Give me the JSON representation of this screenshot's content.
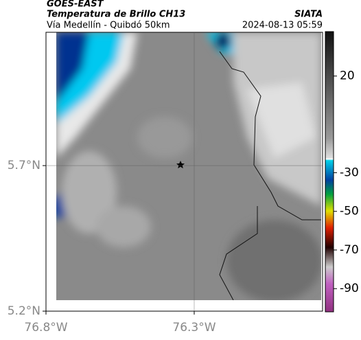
{
  "header": {
    "source": "GOES-EAST",
    "title": "Temperatura de Brillo CH13",
    "subtitle": "Vía Medellín - Quibdó 50km",
    "brand": "SIATA",
    "datetime": "2024-08-13 05:59"
  },
  "map": {
    "xlim": [
      -76.8,
      -75.867
    ],
    "ylim": [
      5.2,
      6.158
    ],
    "xticks": [
      {
        "value": -76.8,
        "label": "76.8°W"
      },
      {
        "value": -76.3,
        "label": "76.3°W"
      }
    ],
    "yticks": [
      {
        "value": 5.2,
        "label": "5.2°N"
      },
      {
        "value": 5.7,
        "label": "5.7°N"
      }
    ],
    "grid": true
  },
  "colorbar": {
    "lim": [
      -102,
      43
    ],
    "ticks": [
      20,
      -30,
      -50,
      -70,
      -90
    ]
  }
}
